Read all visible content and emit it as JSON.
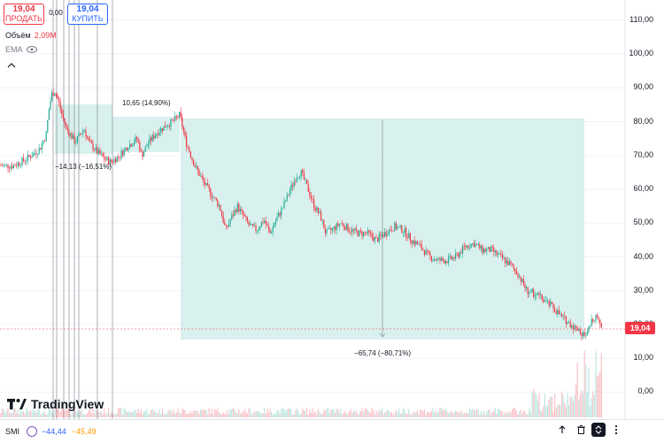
{
  "toolbar": {
    "sell": {
      "price": "19,04",
      "label": "ПРОДАТЬ"
    },
    "spread": "0,00",
    "buy": {
      "price": "19,04",
      "label": "КУПИТЬ"
    }
  },
  "legend": {
    "volume_label": "Объём",
    "volume_value": "2,09M",
    "ema_label": "EMA"
  },
  "price_axis": {
    "labels": [
      "110,00",
      "100,00",
      "90,00",
      "80,00",
      "70,00",
      "60,00",
      "50,00",
      "40,00",
      "30,00",
      "20,00",
      "10,00",
      "0,00"
    ],
    "current_price": "19,04"
  },
  "measurements": [
    {
      "text": "10,65 (14,90%)"
    },
    {
      "text": "−14,13 (−16,51%)"
    },
    {
      "text": "−65,74 (−80,71%)"
    }
  ],
  "logo": {
    "text": "TradingView"
  },
  "indicator": {
    "name": "SMI",
    "value1": "−44,44",
    "value2": "−45,49"
  },
  "colors": {
    "up": "#22ab94",
    "down": "#f23645",
    "measure_fill": "#d5f0ec",
    "sell": "#f23645",
    "buy": "#2962ff"
  },
  "chart_data": {
    "type": "candlestick",
    "y_unit": "price",
    "ylim": [
      -8,
      116
    ],
    "approx_path": [
      [
        0,
        67
      ],
      [
        15,
        67
      ],
      [
        30,
        69
      ],
      [
        45,
        72
      ],
      [
        52,
        76
      ],
      [
        55,
        83
      ],
      [
        58,
        88
      ],
      [
        62,
        89
      ],
      [
        66,
        86
      ],
      [
        70,
        82
      ],
      [
        75,
        78
      ],
      [
        80,
        76
      ],
      [
        85,
        74
      ],
      [
        90,
        76
      ],
      [
        95,
        78
      ],
      [
        100,
        74
      ],
      [
        110,
        71
      ],
      [
        118,
        69
      ],
      [
        125,
        68
      ],
      [
        135,
        70
      ],
      [
        145,
        73
      ],
      [
        155,
        75
      ],
      [
        160,
        70
      ],
      [
        168,
        74
      ],
      [
        178,
        77
      ],
      [
        188,
        79
      ],
      [
        195,
        80
      ],
      [
        203,
        82
      ],
      [
        210,
        74
      ],
      [
        220,
        67
      ],
      [
        230,
        62
      ],
      [
        240,
        58
      ],
      [
        248,
        55
      ],
      [
        255,
        48
      ],
      [
        262,
        52
      ],
      [
        268,
        55
      ],
      [
        275,
        52
      ],
      [
        282,
        49
      ],
      [
        290,
        48
      ],
      [
        298,
        51
      ],
      [
        305,
        47
      ],
      [
        312,
        51
      ],
      [
        320,
        55
      ],
      [
        328,
        60
      ],
      [
        335,
        64
      ],
      [
        340,
        65
      ],
      [
        348,
        60
      ],
      [
        355,
        55
      ],
      [
        362,
        52
      ],
      [
        368,
        47
      ],
      [
        375,
        48
      ],
      [
        385,
        50
      ],
      [
        395,
        48
      ],
      [
        405,
        47
      ],
      [
        415,
        47
      ],
      [
        425,
        45
      ],
      [
        435,
        47
      ],
      [
        445,
        49
      ],
      [
        455,
        48
      ],
      [
        465,
        45
      ],
      [
        475,
        43
      ],
      [
        485,
        40
      ],
      [
        495,
        39
      ],
      [
        505,
        39
      ],
      [
        515,
        40
      ],
      [
        525,
        43
      ],
      [
        535,
        44
      ],
      [
        545,
        42
      ],
      [
        555,
        42
      ],
      [
        565,
        40
      ],
      [
        575,
        38
      ],
      [
        585,
        35
      ],
      [
        595,
        30
      ],
      [
        605,
        29
      ],
      [
        615,
        27
      ],
      [
        625,
        25
      ],
      [
        635,
        22
      ],
      [
        645,
        20
      ],
      [
        655,
        18
      ],
      [
        662,
        16
      ],
      [
        668,
        21
      ],
      [
        674,
        23
      ],
      [
        680,
        19
      ]
    ]
  }
}
